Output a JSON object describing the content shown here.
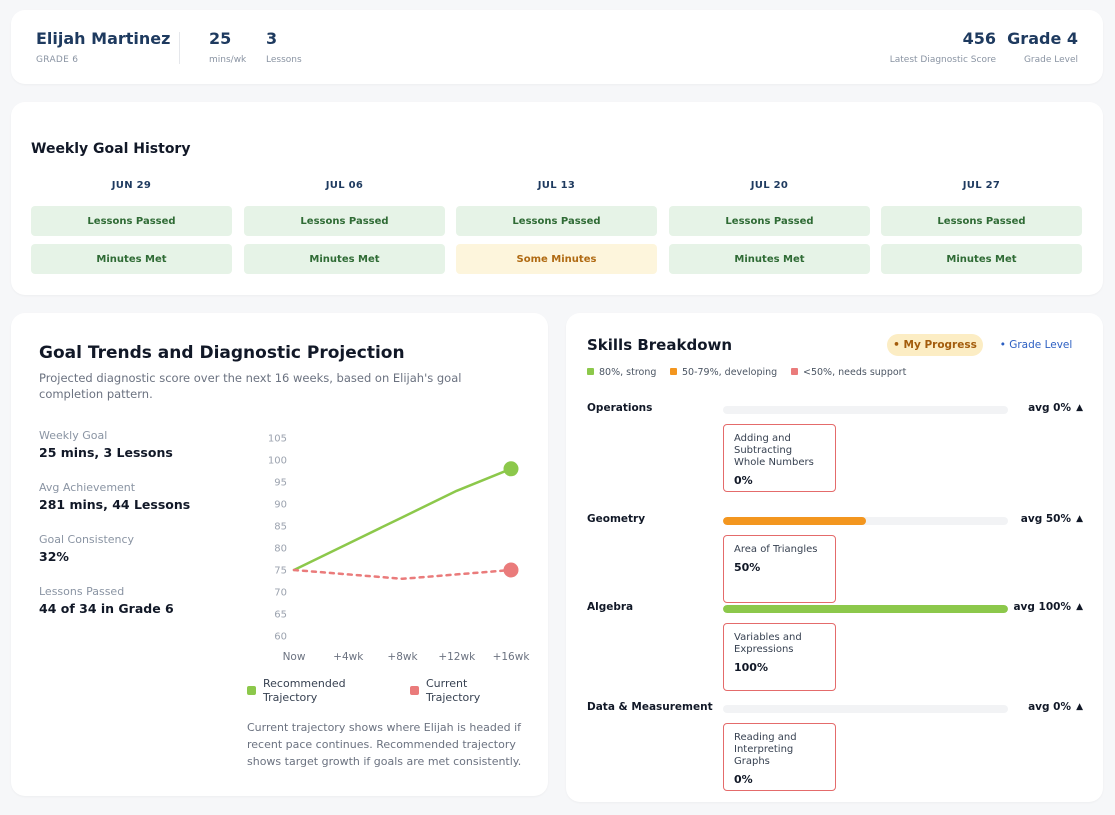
{
  "header": {
    "student_name": "Elijah Martinez",
    "grade_label": "GRADE 6",
    "stats_left": [
      {
        "value": "25",
        "label": "mins/wk"
      },
      {
        "value": "3",
        "label": "Lessons"
      }
    ],
    "stats_right": [
      {
        "value": "456",
        "label": "Latest Diagnostic Score"
      },
      {
        "value": "Grade 4",
        "label": "Grade Level"
      }
    ]
  },
  "history": {
    "title": "Weekly Goal History",
    "weeks": [
      {
        "date": "JUN 29",
        "lessons": "Lessons Passed",
        "minutes": "Minutes Met",
        "minutes_status": "met"
      },
      {
        "date": "JUL 06",
        "lessons": "Lessons Passed",
        "minutes": "Minutes Met",
        "minutes_status": "met"
      },
      {
        "date": "JUL 13",
        "lessons": "Lessons Passed",
        "minutes": "Some Minutes",
        "minutes_status": "partial"
      },
      {
        "date": "JUL 20",
        "lessons": "Lessons Passed",
        "minutes": "Minutes Met",
        "minutes_status": "met"
      },
      {
        "date": "JUL 27",
        "lessons": "Lessons Passed",
        "minutes": "Minutes Met",
        "minutes_status": "met"
      }
    ]
  },
  "trends": {
    "title": "Goal Trends and Diagnostic Projection",
    "subtitle": "Projected diagnostic score over the next 16 weeks, based on Elijah's goal completion pattern.",
    "metrics": [
      {
        "label": "Weekly Goal",
        "value": "25 mins, 3 Lessons"
      },
      {
        "label": "Avg Achievement",
        "value": "281 mins, 44 Lessons"
      },
      {
        "label": "Goal Consistency",
        "value": "32%"
      },
      {
        "label": "Lessons Passed",
        "value": "44 of 34 in Grade 6"
      }
    ],
    "legend": [
      {
        "label": "Recommended Trajectory",
        "color": "#8cc84b"
      },
      {
        "label": "Current Trajectory",
        "color": "#ea7b7b"
      }
    ],
    "note": "Current trajectory shows where Elijah is headed if recent pace continues. Recommended trajectory shows target growth if goals are met consistently."
  },
  "chart_data": {
    "type": "line",
    "x": [
      "Now",
      "+4wk",
      "+8wk",
      "+12wk",
      "+16wk"
    ],
    "ylim": [
      60,
      105
    ],
    "yticks": [
      60,
      65,
      70,
      75,
      80,
      85,
      90,
      95,
      100,
      105
    ],
    "grid": false,
    "legend_position": "bottom",
    "series": [
      {
        "name": "Recommended Trajectory",
        "values": [
          75,
          81,
          87,
          93,
          98
        ],
        "color": "#8cc84b",
        "style": "solid"
      },
      {
        "name": "Current Trajectory",
        "values": [
          75,
          74,
          73,
          74,
          75
        ],
        "color": "#ea7b7b",
        "style": "dashed"
      }
    ]
  },
  "skills": {
    "title": "Skills Breakdown",
    "toggle_my": "• My Progress",
    "toggle_grade": "• Grade Level",
    "key": [
      {
        "label": "80%, strong",
        "color": "#8cc84b"
      },
      {
        "label": "50-79%, developing",
        "color": "#f3961f"
      },
      {
        "label": "<50%, needs support",
        "color": "#ea7b7b"
      }
    ],
    "categories": [
      {
        "name": "Operations",
        "avg_label": "avg 0%",
        "avg": 0,
        "bar_color": "#8cc84b",
        "skill": {
          "name": "Adding and Subtracting Whole Numbers",
          "value": "0%"
        }
      },
      {
        "name": "Geometry",
        "avg_label": "avg 50%",
        "avg": 50,
        "bar_color": "#f3961f",
        "skill": {
          "name": "Area of Triangles",
          "value": "50%"
        }
      },
      {
        "name": "Algebra",
        "avg_label": "avg 100%",
        "avg": 100,
        "bar_color": "#8cc84b",
        "skill": {
          "name": "Variables and Expressions",
          "value": "100%"
        }
      },
      {
        "name": "Data & Measurement",
        "avg_label": "avg 0%",
        "avg": 0,
        "bar_color": "#8cc84b",
        "skill": {
          "name": "Reading and Interpreting Graphs",
          "value": "0%"
        }
      }
    ]
  }
}
